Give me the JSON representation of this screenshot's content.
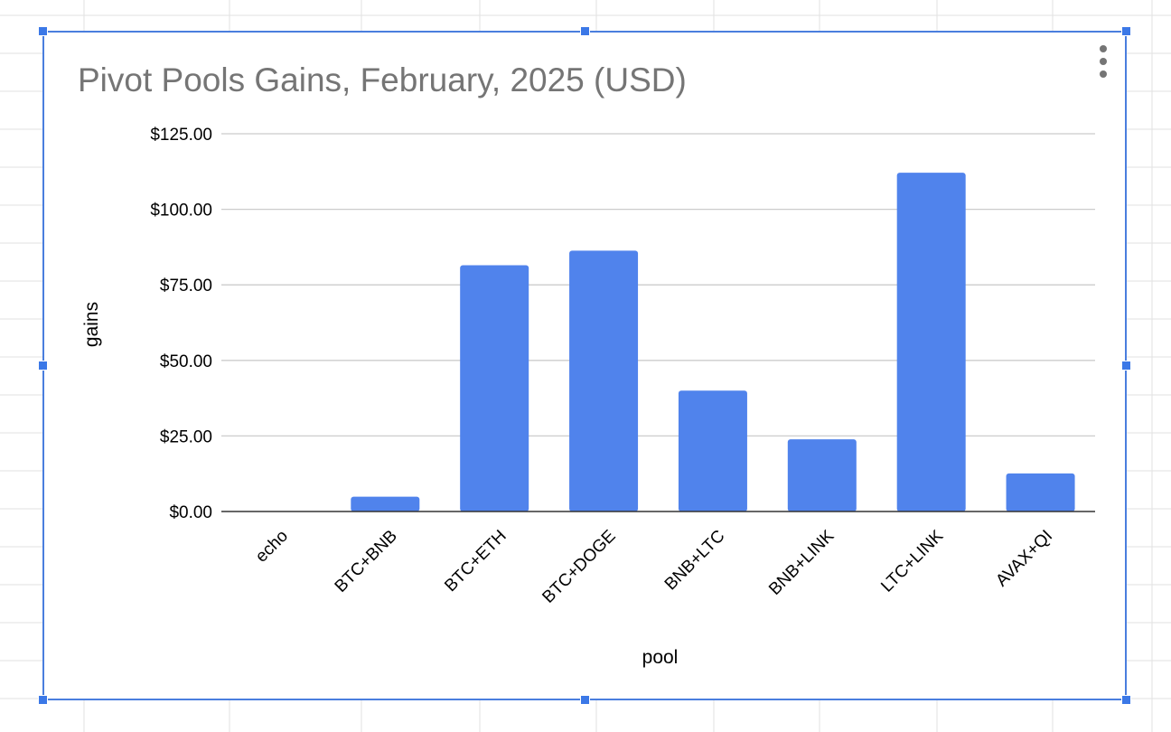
{
  "chart_data": {
    "type": "bar",
    "title": "Pivot Pools Gains, February, 2025 (USD)",
    "xlabel": "pool",
    "ylabel": "gains",
    "categories": [
      "echo",
      "BTC+BNB",
      "BTC+ETH",
      "BTC+DOGE",
      "BNB+LTC",
      "BNB+LINK",
      "LTC+LINK",
      "AVAX+QI"
    ],
    "values": [
      0,
      4.9,
      81.5,
      86.3,
      40.0,
      23.9,
      112.1,
      12.6
    ],
    "ylim": [
      0,
      125
    ],
    "yticks": [
      {
        "value": 0,
        "label": "$0.00"
      },
      {
        "value": 25,
        "label": "$25.00"
      },
      {
        "value": 50,
        "label": "$50.00"
      },
      {
        "value": 75,
        "label": "$75.00"
      },
      {
        "value": 100,
        "label": "$100.00"
      },
      {
        "value": 125,
        "label": "$125.00"
      }
    ],
    "grid": true,
    "legend": "none",
    "bar_color": "#5083ec",
    "grid_color": "#cccccc",
    "baseline_color": "#333333"
  },
  "colors": {
    "selection_border": "#4a7ede",
    "handle": "#3b78e7",
    "title": "#757575",
    "sheet_grid": "#e2e2e2"
  },
  "icons": {
    "chart_menu": "more-vert-icon"
  }
}
